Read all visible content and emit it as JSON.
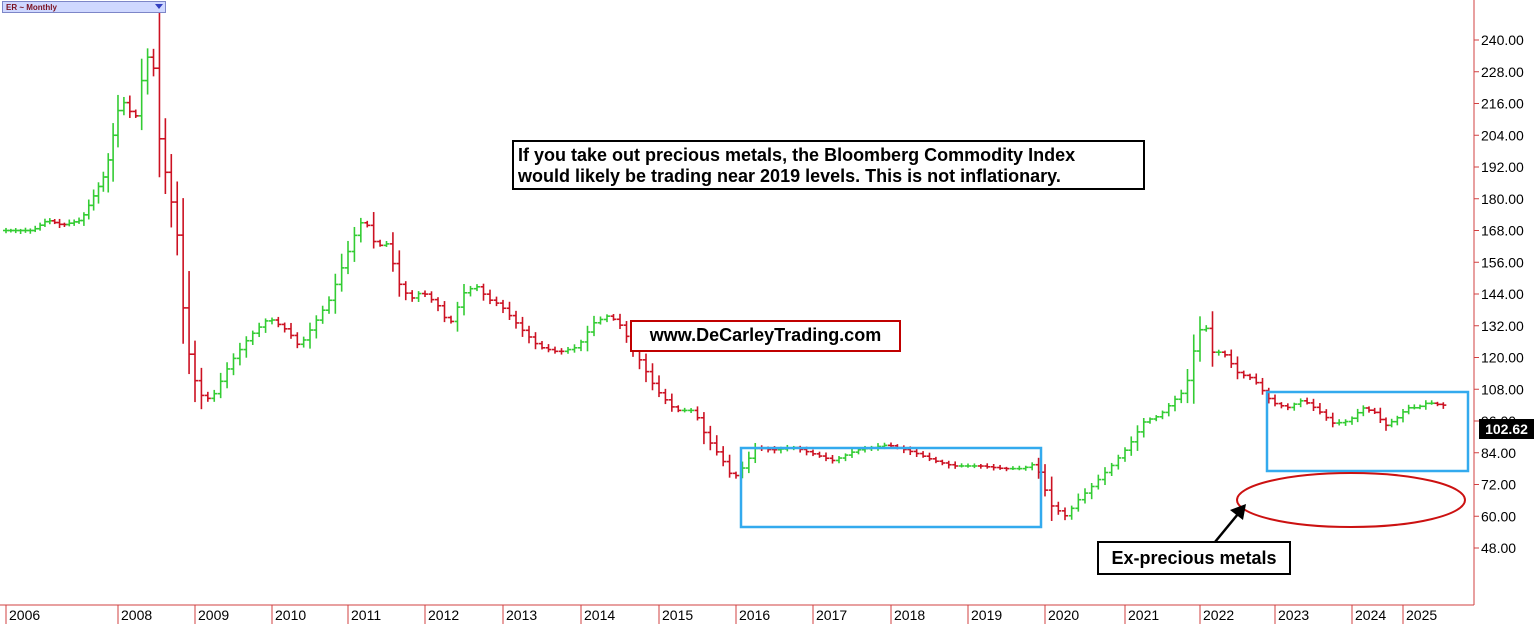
{
  "header": {
    "symbol_label": "ER ~ Monthly"
  },
  "annotations": {
    "main_line1": "If you take out precious metals, the Bloomberg Commodity Index",
    "main_line2": "would likely be trading near 2019 levels. This is not inflationary.",
    "website": "www.DeCarleyTrading.com",
    "ex_precious": "Ex-precious metals"
  },
  "last_price": "102.62",
  "colors": {
    "up_bar": "#33cc33",
    "down_bar": "#cc1122",
    "axis_line": "#d04040",
    "highlight_box": "#33aaee",
    "ellipse": "#cc1111",
    "background": "#ffffff"
  },
  "chart_data": {
    "type": "ohlc",
    "timeframe": "monthly",
    "y_axis": {
      "ticks": [
        "48.00",
        "60.00",
        "72.00",
        "84.00",
        "96.00",
        "108.00",
        "120.00",
        "132.00",
        "144.00",
        "156.00",
        "168.00",
        "180.00",
        "192.00",
        "204.00",
        "216.00",
        "228.00",
        "240.00"
      ],
      "ylim": [
        42,
        252
      ]
    },
    "x_axis": {
      "ticks": [
        {
          "label": "2006",
          "x": 2006.0
        },
        {
          "label": "2008",
          "x": 2007.917
        },
        {
          "label": "2009",
          "x": 2009.0
        },
        {
          "label": "2010",
          "x": 2010.0
        },
        {
          "label": "2011",
          "x": 2011.0
        },
        {
          "label": "2012",
          "x": 2012.0
        },
        {
          "label": "2013",
          "x": 2013.0
        },
        {
          "label": "2014",
          "x": 2014.0
        },
        {
          "label": "2015",
          "x": 2015.0
        },
        {
          "label": "2016",
          "x": 2016.0
        },
        {
          "label": "2017",
          "x": 2017.0
        },
        {
          "label": "2018",
          "x": 2018.0
        },
        {
          "label": "2019",
          "x": 2019.0
        },
        {
          "label": "2020",
          "x": 2020.0
        },
        {
          "label": "2021",
          "x": 2021.0
        },
        {
          "label": "2022",
          "x": 2022.0
        },
        {
          "label": "2023",
          "x": 2023.0
        },
        {
          "label": "2024",
          "x": 2024.0
        },
        {
          "label": "2025",
          "x": 2024.75
        }
      ]
    },
    "series": [
      {
        "name": "",
        "anchors": [
          [
            2006.0,
            168
          ],
          [
            2006.5,
            168
          ],
          [
            2006.75,
            172
          ],
          [
            2007.0,
            170
          ],
          [
            2007.33,
            172
          ],
          [
            2007.75,
            190
          ],
          [
            2008.0,
            218
          ],
          [
            2008.2,
            210
          ],
          [
            2008.35,
            234
          ],
          [
            2008.45,
            232
          ],
          [
            2008.55,
            200
          ],
          [
            2008.7,
            180
          ],
          [
            2008.8,
            165
          ],
          [
            2008.9,
            130
          ],
          [
            2009.0,
            115
          ],
          [
            2009.1,
            106
          ],
          [
            2009.25,
            104
          ],
          [
            2009.5,
            118
          ],
          [
            2009.75,
            128
          ],
          [
            2010.0,
            135
          ],
          [
            2010.25,
            130
          ],
          [
            2010.4,
            124
          ],
          [
            2010.6,
            133
          ],
          [
            2010.8,
            142
          ],
          [
            2011.0,
            157
          ],
          [
            2011.15,
            168
          ],
          [
            2011.25,
            173
          ],
          [
            2011.4,
            162
          ],
          [
            2011.55,
            163
          ],
          [
            2011.7,
            148
          ],
          [
            2011.85,
            142
          ],
          [
            2012.0,
            145
          ],
          [
            2012.2,
            140
          ],
          [
            2012.35,
            132
          ],
          [
            2012.55,
            145
          ],
          [
            2012.7,
            147
          ],
          [
            2012.85,
            142
          ],
          [
            2013.0,
            140
          ],
          [
            2013.3,
            130
          ],
          [
            2013.5,
            124
          ],
          [
            2013.75,
            122
          ],
          [
            2014.0,
            124
          ],
          [
            2014.2,
            133
          ],
          [
            2014.4,
            136
          ],
          [
            2014.55,
            132
          ],
          [
            2014.7,
            124
          ],
          [
            2014.85,
            116
          ],
          [
            2015.0,
            108
          ],
          [
            2015.25,
            100
          ],
          [
            2015.5,
            100
          ],
          [
            2015.65,
            90
          ],
          [
            2015.85,
            82
          ],
          [
            2016.0,
            74
          ],
          [
            2016.12,
            78
          ],
          [
            2016.3,
            86
          ],
          [
            2016.5,
            85
          ],
          [
            2016.8,
            86
          ],
          [
            2017.0,
            84
          ],
          [
            2017.3,
            81
          ],
          [
            2017.6,
            85
          ],
          [
            2018.0,
            87
          ],
          [
            2018.35,
            84
          ],
          [
            2018.6,
            81
          ],
          [
            2018.85,
            79
          ],
          [
            2019.2,
            79
          ],
          [
            2019.5,
            78
          ],
          [
            2019.75,
            78
          ],
          [
            2019.92,
            80
          ],
          [
            2020.0,
            73
          ],
          [
            2020.12,
            64
          ],
          [
            2020.3,
            60
          ],
          [
            2020.45,
            66
          ],
          [
            2020.65,
            72
          ],
          [
            2020.9,
            80
          ],
          [
            2021.1,
            87
          ],
          [
            2021.3,
            96
          ],
          [
            2021.5,
            98
          ],
          [
            2021.7,
            104
          ],
          [
            2021.85,
            108
          ],
          [
            2022.0,
            128
          ],
          [
            2022.1,
            134
          ],
          [
            2022.2,
            122
          ],
          [
            2022.35,
            122
          ],
          [
            2022.55,
            114
          ],
          [
            2022.75,
            112
          ],
          [
            2023.0,
            103
          ],
          [
            2023.2,
            101
          ],
          [
            2023.4,
            104
          ],
          [
            2023.6,
            100
          ],
          [
            2023.8,
            95
          ],
          [
            2024.0,
            96
          ],
          [
            2024.2,
            101
          ],
          [
            2024.4,
            99
          ],
          [
            2024.52,
            94
          ],
          [
            2024.7,
            97
          ],
          [
            2024.85,
            101
          ],
          [
            2025.0,
            101
          ],
          [
            2025.15,
            103
          ],
          [
            2025.35,
            102
          ]
        ]
      }
    ]
  }
}
